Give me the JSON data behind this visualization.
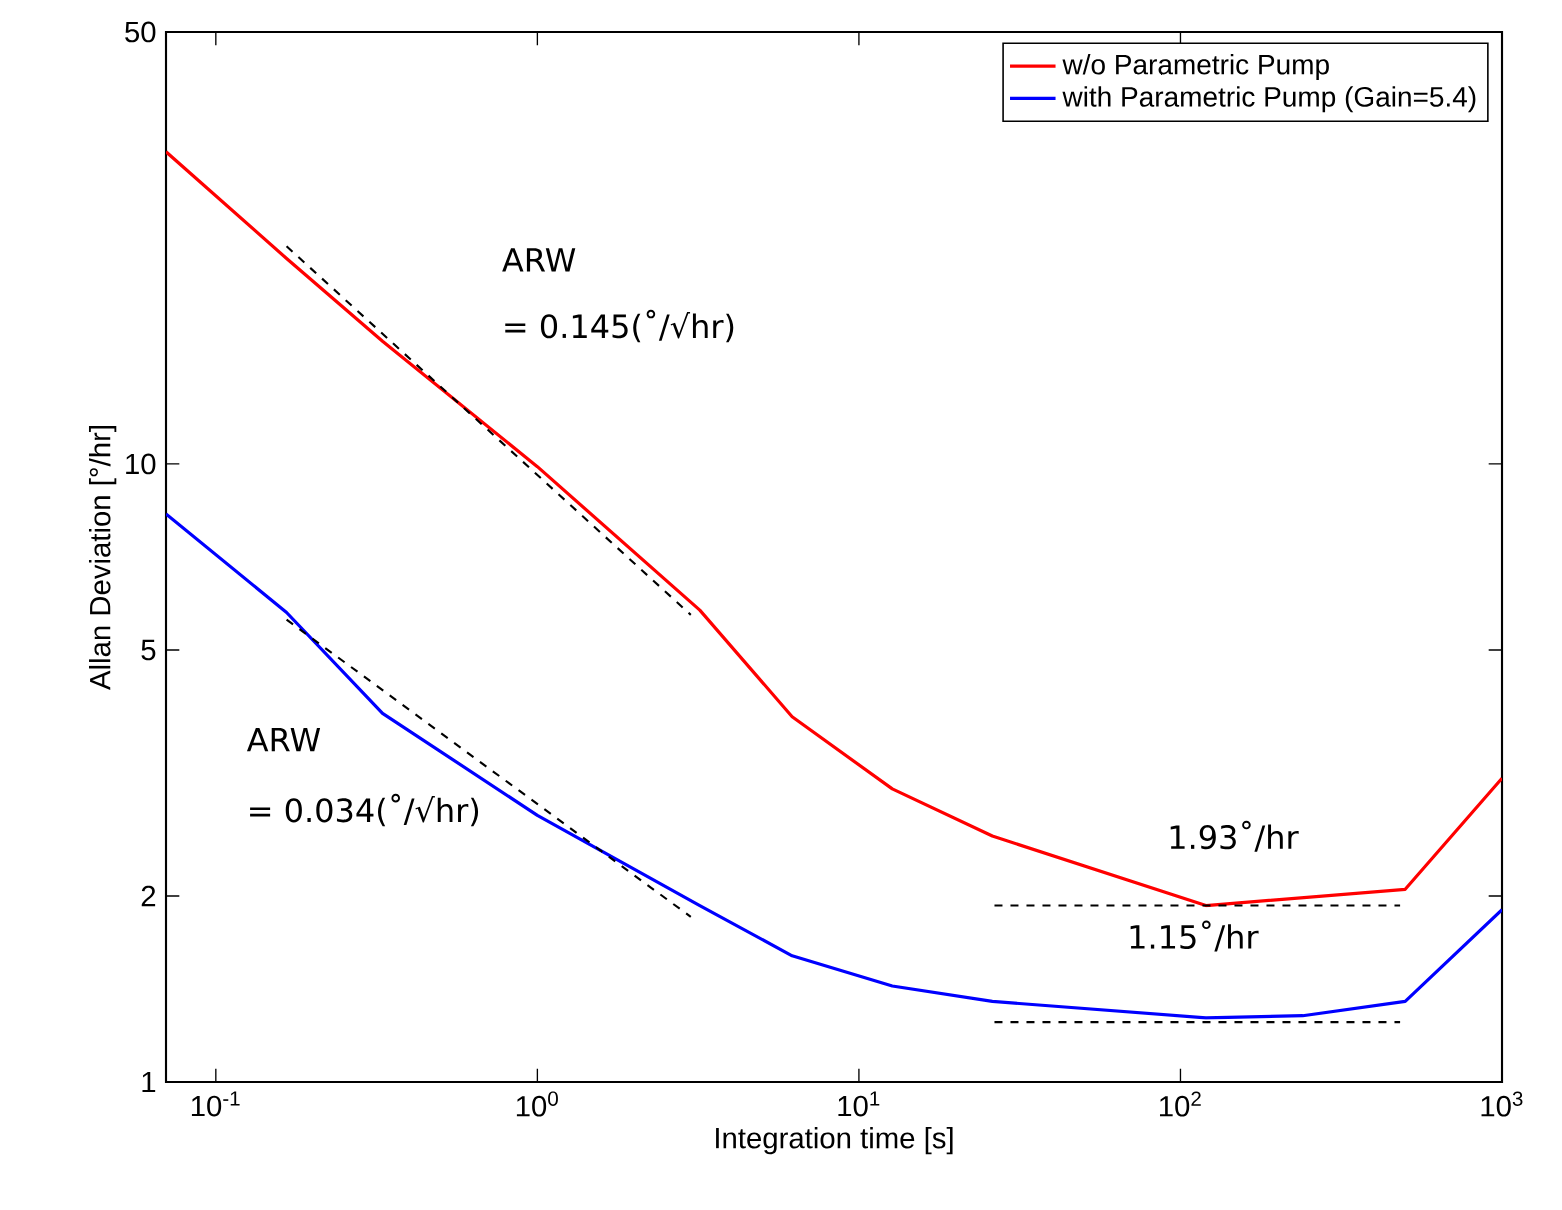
{
  "chart_data": {
    "type": "line",
    "xlabel": "Integration time [s]",
    "ylabel": "Allan Deviation [°/hr]",
    "log": "xy",
    "xlim": [
      0.07,
      1000
    ],
    "ylim": [
      1,
      50
    ],
    "xticks": [
      {
        "value": 0.1,
        "label": "10$^{-1}$"
      },
      {
        "value": 1,
        "label": "10$^{0}$"
      },
      {
        "value": 10,
        "label": "10$^{1}$"
      },
      {
        "value": 100,
        "label": "10$^{2}$"
      },
      {
        "value": 1000,
        "label": "10$^{3}$"
      }
    ],
    "yticks": [
      1,
      2,
      5,
      10,
      50
    ],
    "legend": "top right",
    "series": [
      {
        "name": "w/o Parametric Pump",
        "color": "#ff0000",
        "line_style": "solid",
        "x": [
          0.07,
          0.166,
          0.33,
          1,
          3.2,
          6.2,
          12.7,
          26,
          120,
          500,
          1000
        ],
        "values": [
          32,
          21.5,
          15.8,
          9.9,
          5.8,
          3.9,
          2.98,
          2.5,
          1.93,
          2.05,
          3.1
        ]
      },
      {
        "name": "with Parametric Pump (Gain=5.4)",
        "color": "#0000ff",
        "line_style": "solid",
        "x": [
          0.07,
          0.166,
          0.33,
          1,
          3.2,
          6.2,
          12.7,
          26,
          120,
          240,
          500,
          1000
        ],
        "values": [
          8.3,
          5.75,
          3.95,
          2.7,
          1.93,
          1.6,
          1.43,
          1.35,
          1.27,
          1.28,
          1.35,
          1.9
        ]
      },
      {
        "color": "#000000",
        "line_style": "dashed",
        "x": [
          0.166,
          3.0
        ],
        "values": [
          22.5,
          5.7
        ]
      },
      {
        "color": "#000000",
        "line_style": "dashed",
        "x": [
          0.166,
          3.0
        ],
        "values": [
          5.6,
          1.85
        ]
      },
      {
        "color": "#000000",
        "line_style": "dashed",
        "x": [
          26.4,
          482
        ],
        "values": [
          1.93,
          1.93
        ]
      },
      {
        "color": "#000000",
        "line_style": "dashed",
        "x": [
          26.4,
          482
        ],
        "values": [
          1.25,
          1.25
        ]
      }
    ],
    "annotations": [
      "ARW",
      "= 0.145(˚/√hr)",
      "ARW",
      "= 0.034(˚/√hr)",
      "1.93˚/hr",
      "1.15˚/hr"
    ]
  }
}
